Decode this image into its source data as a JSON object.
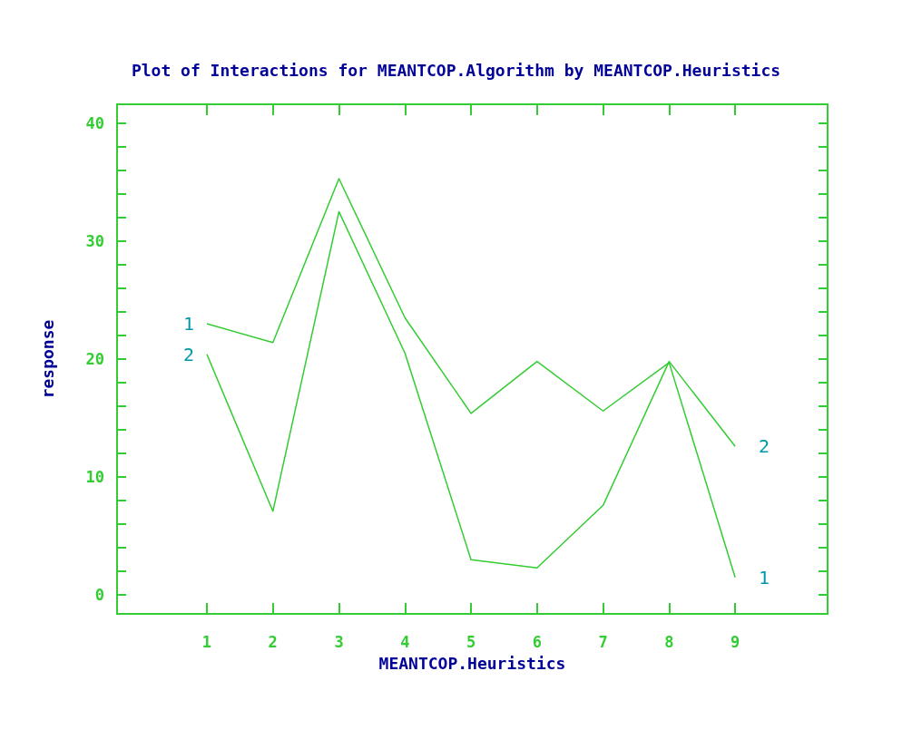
{
  "chart_data": {
    "type": "line",
    "title": "Plot of Interactions for MEANTCOP.Algorithm by MEANTCOP.Heuristics",
    "xlabel": "MEANTCOP.Heuristics",
    "ylabel": "response",
    "x": [
      1,
      2,
      3,
      4,
      5,
      6,
      7,
      8,
      9
    ],
    "series": [
      {
        "name": "1",
        "color": "#33cc33",
        "values": [
          23.0,
          21.4,
          35.3,
          23.5,
          15.4,
          19.8,
          15.6,
          19.7,
          1.5
        ]
      },
      {
        "name": "2",
        "color": "#33cc33",
        "values": [
          20.4,
          7.1,
          32.5,
          20.5,
          3.0,
          2.3,
          7.6,
          19.8,
          12.6
        ]
      }
    ],
    "xlim": [
      -0.36,
      10.4
    ],
    "xticks": [
      1,
      2,
      3,
      4,
      5,
      6,
      7,
      8,
      9
    ],
    "ylim": [
      -1.6,
      41.6
    ],
    "yticks": [
      0,
      {
        "value": 2,
        "label": null
      },
      {
        "value": 4,
        "label": null
      },
      {
        "value": 6,
        "label": null
      },
      {
        "value": 8,
        "label": null
      },
      10,
      {
        "value": 12,
        "label": null
      },
      {
        "value": 14,
        "label": null
      },
      {
        "value": 16,
        "label": null
      },
      {
        "value": 18,
        "label": null
      },
      20,
      {
        "value": 22,
        "label": null
      },
      {
        "value": 24,
        "label": null
      },
      {
        "value": 26,
        "label": null
      },
      {
        "value": 28,
        "label": null
      },
      30,
      {
        "value": 32,
        "label": null
      },
      {
        "value": 34,
        "label": null
      },
      {
        "value": 36,
        "label": null
      },
      {
        "value": 38,
        "label": null
      },
      40
    ],
    "grid": false,
    "legend": false
  }
}
